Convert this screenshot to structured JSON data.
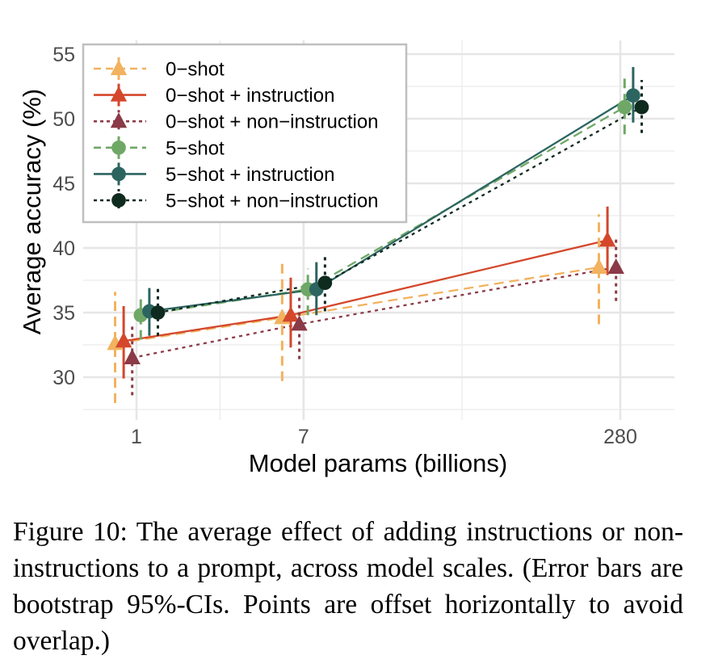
{
  "chart_data": {
    "type": "line",
    "title": "",
    "xlabel": "Model params (billions)",
    "ylabel": "Average accuracy (%)",
    "x_scale": "log",
    "categories": [
      "1",
      "7",
      "280"
    ],
    "x": [
      1,
      7,
      280
    ],
    "ylim": [
      27,
      55.2
    ],
    "yticks": [
      30,
      35,
      40,
      45,
      50,
      55
    ],
    "grid": true,
    "legend_position": "top-left",
    "error_bars": "bootstrap 95% CI",
    "series": [
      {
        "name": "0−shot",
        "color": "#F2B25F",
        "linestyle": "dashed",
        "marker": "triangle",
        "values": [
          32.6,
          34.6,
          38.5
        ],
        "ci_low": [
          28.0,
          29.7,
          34.1
        ],
        "ci_high": [
          36.6,
          39.2,
          42.6
        ]
      },
      {
        "name": "0−shot + instruction",
        "color": "#D4472B",
        "linestyle": "solid",
        "marker": "triangle",
        "values": [
          32.8,
          34.8,
          40.6
        ],
        "ci_low": [
          29.9,
          32.3,
          37.9
        ],
        "ci_high": [
          35.5,
          37.7,
          43.2
        ]
      },
      {
        "name": "0−shot + non−instruction",
        "color": "#8B3A47",
        "linestyle": "dotted",
        "marker": "triangle",
        "values": [
          31.5,
          34.1,
          38.5
        ],
        "ci_low": [
          28.6,
          31.4,
          35.9
        ],
        "ci_high": [
          34.0,
          36.3,
          40.9
        ]
      },
      {
        "name": "5−shot",
        "color": "#6FA866",
        "linestyle": "dashed",
        "marker": "circle",
        "values": [
          34.8,
          36.8,
          50.9
        ],
        "ci_low": [
          32.9,
          34.8,
          48.8
        ],
        "ci_high": [
          36.4,
          38.4,
          53.1
        ]
      },
      {
        "name": "5−shot + instruction",
        "color": "#2C6560",
        "linestyle": "solid",
        "marker": "circle",
        "values": [
          35.1,
          36.8,
          51.8
        ],
        "ci_low": [
          33.2,
          34.8,
          49.7
        ],
        "ci_high": [
          36.9,
          38.9,
          54.0
        ]
      },
      {
        "name": "5−shot + non−instruction",
        "color": "#0F2A1E",
        "linestyle": "dotted",
        "marker": "circle",
        "values": [
          35.0,
          37.3,
          50.9
        ],
        "ci_low": [
          33.2,
          35.1,
          48.9
        ],
        "ci_high": [
          36.9,
          39.4,
          53.0
        ]
      }
    ]
  },
  "caption": "Figure 10:  The average effect of adding instructions or non-instructions to a prompt, across model scales. (Error bars are bootstrap 95%-CIs.  Points are offset horizontally to avoid overlap.)"
}
